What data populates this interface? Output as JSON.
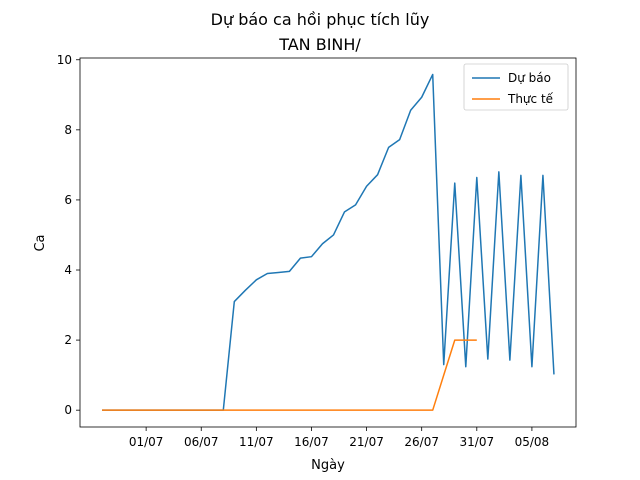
{
  "chart_data": {
    "type": "line",
    "title": "Dự báo ca hồi phục tích lũy",
    "subtitle": "TAN BINH/",
    "xlabel": "Ngày",
    "ylabel": "Ca",
    "xlim": [
      "2020-06-25",
      "2020-08-09"
    ],
    "ylim": [
      -0.48,
      10.05
    ],
    "x_ticks": [
      {
        "date": "2020-07-01",
        "label": "01/07"
      },
      {
        "date": "2020-07-06",
        "label": "06/07"
      },
      {
        "date": "2020-07-11",
        "label": "11/07"
      },
      {
        "date": "2020-07-16",
        "label": "16/07"
      },
      {
        "date": "2020-07-21",
        "label": "21/07"
      },
      {
        "date": "2020-07-26",
        "label": "26/07"
      },
      {
        "date": "2020-07-31",
        "label": "31/07"
      },
      {
        "date": "2020-08-05",
        "label": "05/08"
      }
    ],
    "y_ticks": [
      0,
      2,
      4,
      6,
      8,
      10
    ],
    "grid": false,
    "legend_position": "top-right",
    "series": [
      {
        "name": "Dự báo",
        "color": "#1f77b4",
        "points": [
          [
            "2020-06-27",
            0
          ],
          [
            "2020-06-28",
            0
          ],
          [
            "2020-06-29",
            0
          ],
          [
            "2020-06-30",
            0
          ],
          [
            "2020-07-01",
            0
          ],
          [
            "2020-07-02",
            0
          ],
          [
            "2020-07-03",
            0
          ],
          [
            "2020-07-04",
            0
          ],
          [
            "2020-07-05",
            0
          ],
          [
            "2020-07-06",
            0
          ],
          [
            "2020-07-07",
            0
          ],
          [
            "2020-07-08",
            0
          ],
          [
            "2020-07-09",
            3.1
          ],
          [
            "2020-07-10",
            3.42
          ],
          [
            "2020-07-11",
            3.72
          ],
          [
            "2020-07-12",
            3.9
          ],
          [
            "2020-07-13",
            3.93
          ],
          [
            "2020-07-14",
            3.96
          ],
          [
            "2020-07-15",
            4.34
          ],
          [
            "2020-07-16",
            4.38
          ],
          [
            "2020-07-17",
            4.75
          ],
          [
            "2020-07-18",
            5.0
          ],
          [
            "2020-07-19",
            5.66
          ],
          [
            "2020-07-20",
            5.86
          ],
          [
            "2020-07-21",
            6.39
          ],
          [
            "2020-07-22",
            6.72
          ],
          [
            "2020-07-23",
            7.5
          ],
          [
            "2020-07-24",
            7.72
          ],
          [
            "2020-07-25",
            8.56
          ],
          [
            "2020-07-26",
            8.93
          ],
          [
            "2020-07-27",
            9.58
          ],
          [
            "2020-07-28",
            1.3
          ],
          [
            "2020-07-29",
            6.48
          ],
          [
            "2020-07-30",
            1.24
          ],
          [
            "2020-07-31",
            6.64
          ],
          [
            "2020-08-01",
            1.46
          ],
          [
            "2020-08-02",
            6.8
          ],
          [
            "2020-08-03",
            1.43
          ],
          [
            "2020-08-04",
            6.7
          ],
          [
            "2020-08-05",
            1.24
          ],
          [
            "2020-08-06",
            6.7
          ],
          [
            "2020-08-07",
            1.02
          ]
        ]
      },
      {
        "name": "Thực tế",
        "color": "#ff7f0e",
        "points": [
          [
            "2020-06-27",
            0
          ],
          [
            "2020-06-28",
            0
          ],
          [
            "2020-06-29",
            0
          ],
          [
            "2020-06-30",
            0
          ],
          [
            "2020-07-01",
            0
          ],
          [
            "2020-07-02",
            0
          ],
          [
            "2020-07-03",
            0
          ],
          [
            "2020-07-04",
            0
          ],
          [
            "2020-07-05",
            0
          ],
          [
            "2020-07-06",
            0
          ],
          [
            "2020-07-07",
            0
          ],
          [
            "2020-07-08",
            0
          ],
          [
            "2020-07-09",
            0
          ],
          [
            "2020-07-10",
            0
          ],
          [
            "2020-07-11",
            0
          ],
          [
            "2020-07-12",
            0
          ],
          [
            "2020-07-13",
            0
          ],
          [
            "2020-07-14",
            0
          ],
          [
            "2020-07-15",
            0
          ],
          [
            "2020-07-16",
            0
          ],
          [
            "2020-07-17",
            0
          ],
          [
            "2020-07-18",
            0
          ],
          [
            "2020-07-19",
            0
          ],
          [
            "2020-07-20",
            0
          ],
          [
            "2020-07-21",
            0
          ],
          [
            "2020-07-22",
            0
          ],
          [
            "2020-07-23",
            0
          ],
          [
            "2020-07-24",
            0
          ],
          [
            "2020-07-25",
            0
          ],
          [
            "2020-07-26",
            0
          ],
          [
            "2020-07-27",
            0
          ],
          [
            "2020-07-28",
            1.0
          ],
          [
            "2020-07-29",
            2.0
          ],
          [
            "2020-07-30",
            2.0
          ],
          [
            "2020-07-31",
            2.0
          ]
        ]
      }
    ]
  }
}
